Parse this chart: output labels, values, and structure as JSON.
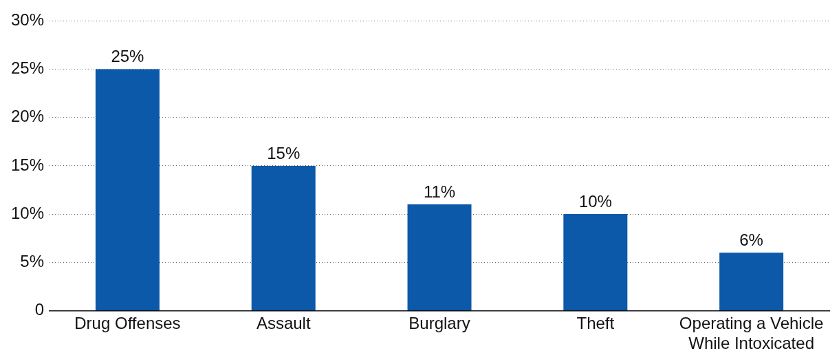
{
  "chart_data": {
    "type": "bar",
    "categories": [
      "Drug Offenses",
      "Assault",
      "Burglary",
      "Theft",
      "Operating a Vehicle While Intoxicated"
    ],
    "values": [
      25,
      15,
      11,
      10,
      6
    ],
    "color": "#0b59a8",
    "value_labels": [
      "25%",
      "15%",
      "11%",
      "10%",
      "6%"
    ],
    "ylim": [
      0,
      30
    ],
    "yticks": [
      0,
      {
        "value": 5,
        "label": "5%"
      },
      {
        "value": 10,
        "label": "10%"
      },
      {
        "value": 15,
        "label": "15%"
      },
      {
        "value": 20,
        "label": "20%"
      },
      {
        "value": 25,
        "label": "25%"
      },
      {
        "value": 30,
        "label": "30%"
      }
    ],
    "grid": "y"
  }
}
